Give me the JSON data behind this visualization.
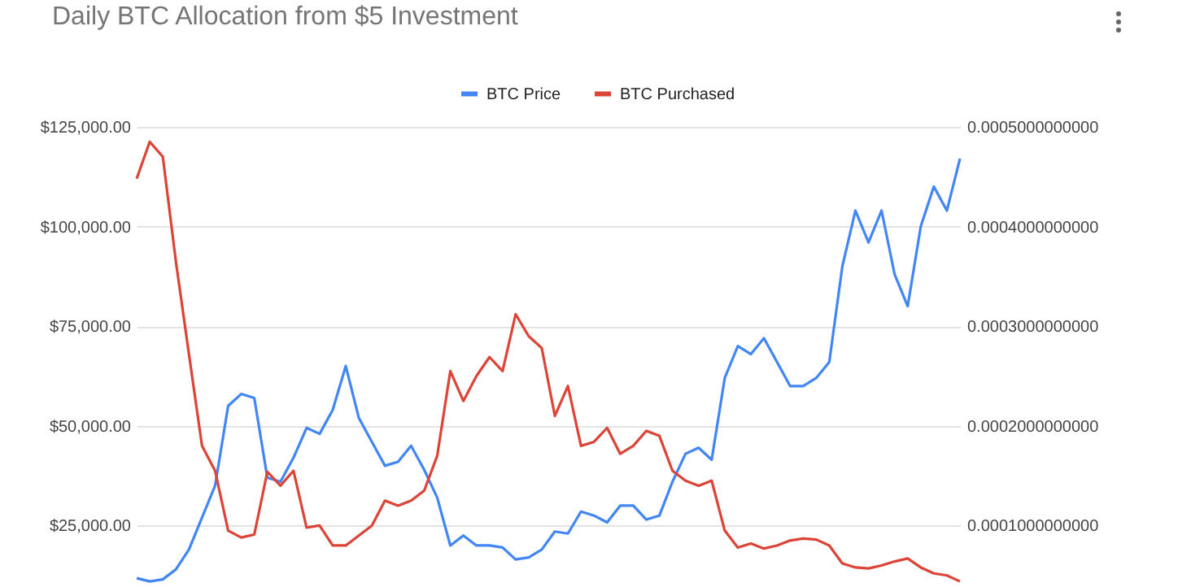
{
  "chart_data": {
    "type": "line",
    "title": "Daily BTC Allocation from $5 Investment",
    "categories": [
      null,
      null,
      null,
      null,
      null,
      null,
      null,
      null,
      null,
      null,
      null,
      null,
      null,
      null,
      null,
      null,
      null,
      null,
      null,
      null,
      null,
      null,
      null,
      null,
      null,
      null,
      null,
      null,
      null,
      null,
      null,
      null,
      null,
      null,
      null,
      null,
      null,
      null,
      null,
      null,
      null,
      null,
      null,
      null,
      null,
      null,
      null,
      null,
      null,
      null,
      null,
      null,
      null,
      null,
      null,
      null,
      null,
      null,
      null,
      null,
      null,
      null,
      null,
      null
    ],
    "series": [
      {
        "name": "BTC Price",
        "color": "#4285f4",
        "values": [
          11800,
          11000,
          11500,
          14000,
          19000,
          27000,
          35000,
          55000,
          58000,
          57000,
          37000,
          36000,
          42000,
          49500,
          48000,
          54000,
          65000,
          52000,
          46000,
          40000,
          41000,
          45000,
          39000,
          32000,
          20000,
          22500,
          20000,
          20000,
          19500,
          16500,
          17000,
          19000,
          23500,
          23000,
          28500,
          27500,
          25800,
          30000,
          30000,
          26500,
          27500,
          36000,
          43000,
          44500,
          41500,
          62000,
          70000,
          68000,
          72000,
          66000,
          60000,
          60000,
          62000,
          66000,
          90000,
          104000,
          96000,
          104000,
          88000,
          80000,
          100000,
          110000,
          104000,
          117000
        ]
      },
      {
        "name": "BTC Purchased",
        "color": "#db4437",
        "axis": "y2",
        "values": [
          0.000448,
          0.000485,
          0.00047,
          0.000365,
          0.000272,
          0.00018,
          0.000155,
          9.5e-05,
          8.8e-05,
          9.1e-05,
          0.000154,
          0.00014,
          0.000155,
          9.8e-05,
          0.0001,
          8e-05,
          8e-05,
          9e-05,
          0.0001,
          0.000125,
          0.00012,
          0.000125,
          0.000135,
          0.00017,
          0.000255,
          0.000225,
          0.00025,
          0.000269,
          0.000255,
          0.000312,
          0.00029,
          0.000278,
          0.00021,
          0.00024,
          0.00018,
          0.000184,
          0.000198,
          0.000172,
          0.00018,
          0.000195,
          0.00019,
          0.000155,
          0.000145,
          0.00014,
          0.000145,
          9.5e-05,
          7.8e-05,
          8.2e-05,
          7.7e-05,
          8e-05,
          8.5e-05,
          8.7e-05,
          8.6e-05,
          8e-05,
          6.2e-05,
          5.8e-05,
          5.7e-05,
          6e-05,
          6.4e-05,
          6.7e-05,
          5.8e-05,
          5.2e-05,
          5e-05,
          4.4e-05
        ]
      }
    ],
    "ylim": [
      10000,
      125000
    ],
    "yticks": [
      {
        "value": 25000,
        "label": "$25,000.00"
      },
      {
        "value": 50000,
        "label": "$50,000.00"
      },
      {
        "value": 75000,
        "label": "$75,000.00"
      },
      {
        "value": 100000,
        "label": "$100,000.00"
      },
      {
        "value": 125000,
        "label": "$125,000.00"
      }
    ],
    "y2lim": [
      4e-05,
      0.0005
    ],
    "y2ticks": [
      {
        "value": 0.0001,
        "label": "0.0001000000000"
      },
      {
        "value": 0.0002,
        "label": "0.0002000000000"
      },
      {
        "value": 0.0003,
        "label": "0.0003000000000"
      },
      {
        "value": 0.0004,
        "label": "0.0004000000000"
      },
      {
        "value": 0.0005,
        "label": "0.0005000000000"
      }
    ],
    "grid": true,
    "legend": "top",
    "tick_labels": "y"
  }
}
